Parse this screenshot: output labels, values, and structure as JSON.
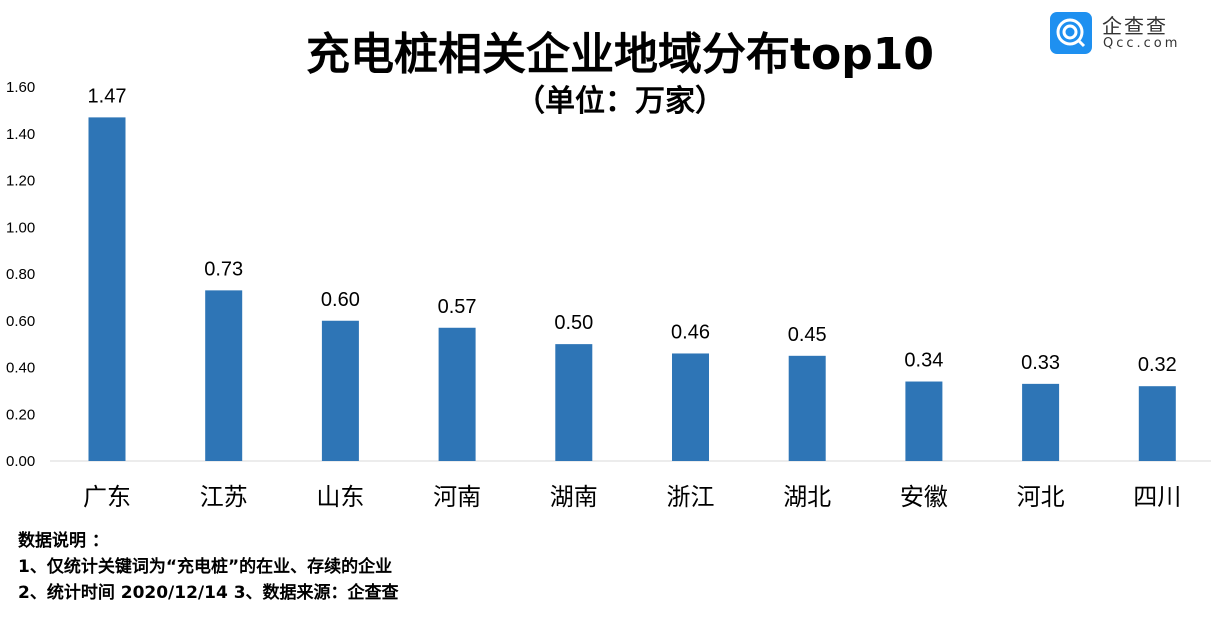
{
  "logo": {
    "name_cn": "企查查",
    "name_en": "Qcc.com",
    "color": "#1e90f0"
  },
  "chart_data": {
    "type": "bar",
    "title": "充电桩相关企业地域分布top10",
    "subtitle": "（单位：万家）",
    "categories": [
      "广东",
      "江苏",
      "山东",
      "河南",
      "湖南",
      "浙江",
      "湖北",
      "安徽",
      "河北",
      "四川"
    ],
    "values": [
      1.47,
      0.73,
      0.6,
      0.57,
      0.5,
      0.46,
      0.45,
      0.34,
      0.33,
      0.32
    ],
    "data_labels": [
      "1.47",
      "0.73",
      "0.60",
      "0.57",
      "0.50",
      "0.46",
      "0.45",
      "0.34",
      "0.33",
      "0.32"
    ],
    "ylim": [
      0,
      1.6
    ],
    "yticks": [
      "0.00",
      "0.20",
      "0.40",
      "0.60",
      "0.80",
      "1.00",
      "1.20",
      "1.40",
      "1.60"
    ],
    "grid": false,
    "bar_color": "#2e75b6"
  },
  "notes": {
    "heading": "数据说明 ：",
    "line1": "1、仅统计关键词为“充电桩”的在业、存续的企业",
    "line2": "2、统计时间  2020/12/14   3、数据来源：企查查"
  }
}
